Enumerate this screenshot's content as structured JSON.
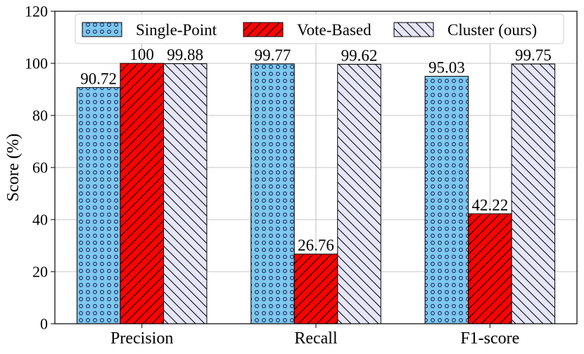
{
  "chart_data": {
    "type": "bar",
    "title": "",
    "xlabel": "",
    "ylabel": "Score (%)",
    "ylim": [
      0,
      120
    ],
    "yticks": [
      0,
      20,
      40,
      60,
      80,
      100,
      120
    ],
    "grid": true,
    "legend_position": "top",
    "categories": [
      "Precision",
      "Recall",
      "F1-score"
    ],
    "series": [
      {
        "name": "Single-Point",
        "values": [
          90.72,
          99.77,
          95.03
        ],
        "labels": [
          "90.72",
          "99.77",
          "95.03"
        ],
        "color": "#7ec8ee",
        "pattern": "dots"
      },
      {
        "name": "Vote-Based",
        "values": [
          100,
          26.76,
          42.22
        ],
        "labels": [
          "100",
          "26.76",
          "42.22"
        ],
        "color": "#ff0000",
        "pattern": "forward-hatch"
      },
      {
        "name": "Cluster (ours)",
        "values": [
          99.88,
          99.62,
          99.75
        ],
        "labels": [
          "99.88",
          "99.62",
          "99.75"
        ],
        "color": "#e6e6fa",
        "pattern": "back-hatch"
      }
    ]
  }
}
